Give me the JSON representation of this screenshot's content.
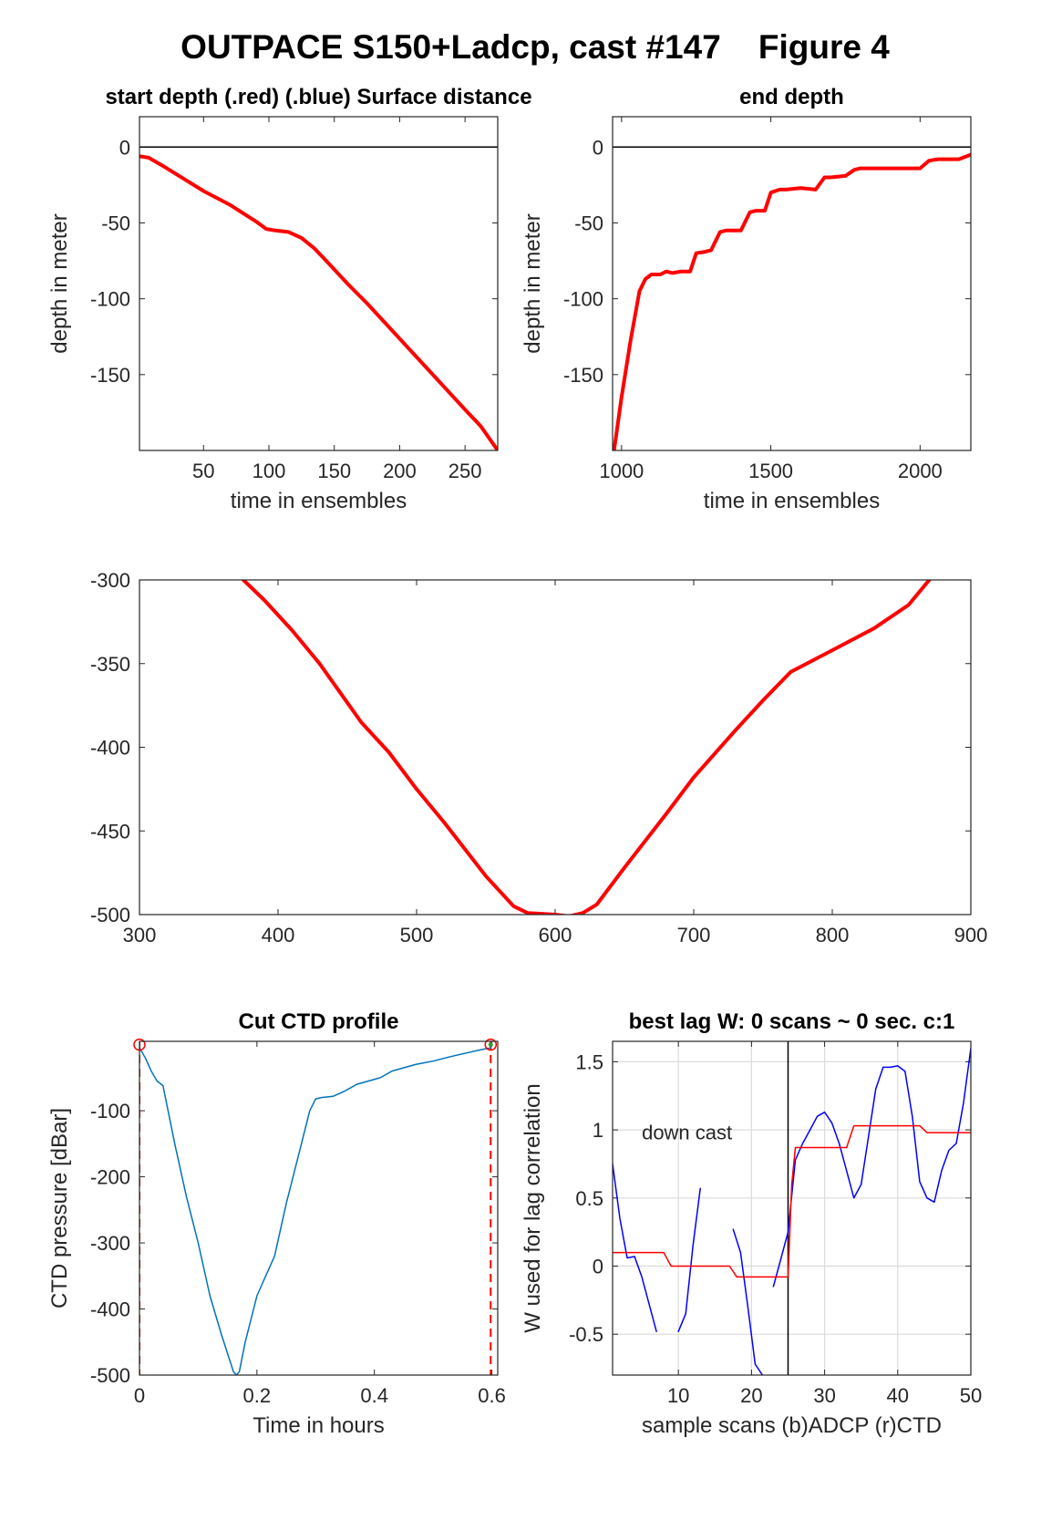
{
  "figure_title": "OUTPACE S150+Ladcp, cast #147    Figure 4",
  "chart_data": [
    {
      "id": "p1",
      "type": "line",
      "title": "start depth (.red) (.blue) Surface distance",
      "xlabel": "time in ensembles",
      "ylabel": "depth in meter",
      "xlim": [
        1,
        275
      ],
      "ylim": [
        -200,
        20
      ],
      "xticks": [
        50,
        100,
        150,
        200,
        250
      ],
      "yticks": [
        0,
        -50,
        -100,
        -150
      ],
      "hline": 0,
      "series": [
        {
          "color": "#ff0000",
          "width": 4,
          "x": [
            1,
            8,
            20,
            35,
            50,
            70,
            90,
            98,
            105,
            115,
            125,
            135,
            145,
            160,
            175,
            190,
            205,
            220,
            235,
            250,
            262,
            275
          ],
          "y": [
            -6,
            -7,
            -13,
            -21,
            -29,
            -38,
            -49,
            -54,
            -55,
            -56,
            -60,
            -67,
            -76,
            -90,
            -103,
            -117,
            -131,
            -145,
            -159,
            -173,
            -184,
            -200
          ]
        }
      ]
    },
    {
      "id": "p2",
      "type": "line",
      "title": "end depth",
      "xlabel": "time in ensembles",
      "ylabel": "depth in meter",
      "xlim": [
        970,
        2170
      ],
      "ylim": [
        -200,
        20
      ],
      "xticks": [
        1000,
        1500,
        2000
      ],
      "yticks": [
        0,
        -50,
        -100,
        -150
      ],
      "hline": 0,
      "series": [
        {
          "color": "#ff0000",
          "width": 4,
          "x": [
            975,
            1000,
            1030,
            1060,
            1080,
            1100,
            1130,
            1150,
            1170,
            1200,
            1230,
            1250,
            1280,
            1300,
            1330,
            1350,
            1400,
            1430,
            1450,
            1480,
            1500,
            1530,
            1550,
            1600,
            1650,
            1680,
            1700,
            1750,
            1780,
            1800,
            1850,
            1880,
            1950,
            2000,
            2030,
            2060,
            2100,
            2130,
            2170
          ],
          "y": [
            -200,
            -165,
            -128,
            -95,
            -87,
            -84,
            -84,
            -82,
            -83,
            -82,
            -82,
            -70,
            -69,
            -68,
            -56,
            -55,
            -55,
            -43,
            -42,
            -42,
            -30,
            -28,
            -28,
            -27,
            -28,
            -20,
            -20,
            -19,
            -15,
            -14,
            -14,
            -14,
            -14,
            -14,
            -9,
            -8,
            -8,
            -8,
            -5
          ]
        }
      ]
    },
    {
      "id": "p3",
      "type": "line",
      "title": "",
      "xlabel": "",
      "ylabel": "",
      "xlim": [
        300,
        900
      ],
      "ylim": [
        -500,
        -300
      ],
      "xticks": [
        300,
        400,
        500,
        600,
        700,
        800,
        900
      ],
      "yticks": [
        -300,
        -350,
        -400,
        -450,
        -500
      ],
      "series": [
        {
          "color": "#ff0000",
          "width": 4,
          "x": [
            375,
            390,
            410,
            430,
            460,
            480,
            500,
            520,
            550,
            570,
            580,
            600,
            610,
            620,
            630,
            650,
            680,
            700,
            730,
            750,
            770,
            800,
            830,
            855,
            870
          ],
          "y": [
            -300,
            -312,
            -330,
            -350,
            -385,
            -403,
            -425,
            -445,
            -477,
            -495,
            -499,
            -500,
            -501,
            -499,
            -494,
            -472,
            -440,
            -418,
            -390,
            -372,
            -355,
            -342,
            -329,
            -315,
            -300
          ]
        }
      ]
    },
    {
      "id": "p4",
      "type": "line",
      "title": "Cut CTD profile",
      "xlabel": "Time in hours",
      "ylabel": "CTD pressure [dBar]",
      "xlim": [
        0,
        0.61
      ],
      "ylim": [
        -500,
        5
      ],
      "xticks": [
        0,
        0.2,
        0.4,
        0.6
      ],
      "xticklabels": [
        "0",
        "0.2",
        "0.4",
        "0.6"
      ],
      "yticks": [
        -100,
        -200,
        -300,
        -400,
        -500
      ],
      "vlines": [
        0,
        0.598
      ],
      "markers": [
        {
          "x": 0,
          "y": 0
        },
        {
          "x": 0.598,
          "y": 0
        }
      ],
      "series": [
        {
          "color": "#0072bd",
          "width": 1.5,
          "x": [
            0,
            0.01,
            0.02,
            0.03,
            0.04,
            0.06,
            0.08,
            0.1,
            0.12,
            0.14,
            0.16,
            0.165,
            0.17,
            0.18,
            0.2,
            0.21,
            0.23,
            0.25,
            0.27,
            0.29,
            0.3,
            0.31,
            0.33,
            0.35,
            0.37,
            0.39,
            0.41,
            0.43,
            0.45,
            0.47,
            0.5,
            0.53,
            0.56,
            0.58,
            0.598
          ],
          "y": [
            -5,
            -20,
            -40,
            -55,
            -62,
            -150,
            -230,
            -300,
            -380,
            -440,
            -495,
            -500,
            -495,
            -450,
            -380,
            -360,
            -320,
            -240,
            -170,
            -100,
            -82,
            -80,
            -78,
            -70,
            -60,
            -55,
            -50,
            -40,
            -35,
            -30,
            -25,
            -18,
            -12,
            -8,
            -5
          ]
        }
      ]
    },
    {
      "id": "p5",
      "type": "line",
      "title": "best lag W: 0 scans ~ 0 sec.  c:1",
      "xlabel": "sample scans (b)ADCP (r)CTD",
      "ylabel": "W used for lag correlation",
      "xlim": [
        1,
        50
      ],
      "ylim": [
        -0.8,
        1.65
      ],
      "xticks": [
        10,
        20,
        30,
        40,
        50
      ],
      "yticks": [
        1.5,
        1,
        0.5,
        0,
        -0.5
      ],
      "grid": true,
      "vline": 25,
      "annotation": {
        "text": "down cast",
        "x": 5,
        "y": 0.93
      },
      "series": [
        {
          "color": "#0000ff",
          "width": 1.5,
          "x": [
            1,
            2,
            3,
            4,
            5,
            7
          ],
          "y": [
            0.75,
            0.35,
            0.06,
            0.07,
            -0.08,
            -0.48
          ]
        },
        {
          "color": "#0000ff",
          "width": 1.5,
          "x": [
            10,
            11,
            12,
            13
          ],
          "y": [
            -0.48,
            -0.35,
            0.15,
            0.57
          ]
        },
        {
          "color": "#0000ff",
          "width": 1.5,
          "x": [
            17.5,
            18.5,
            19.5,
            20.5,
            21.5
          ],
          "y": [
            0.27,
            0.1,
            -0.3,
            -0.72,
            -0.8
          ]
        },
        {
          "color": "#0000ff",
          "width": 1.5,
          "x": [
            23,
            24,
            25,
            26,
            27,
            28,
            29,
            30,
            31,
            32,
            33,
            34,
            35,
            36,
            37,
            38,
            39,
            40,
            41,
            42,
            43,
            44,
            45,
            46,
            47,
            48,
            49,
            50
          ],
          "y": [
            -0.15,
            0.05,
            0.25,
            0.78,
            0.9,
            1.0,
            1.1,
            1.13,
            1.05,
            0.9,
            0.7,
            0.5,
            0.6,
            0.95,
            1.3,
            1.46,
            1.46,
            1.47,
            1.43,
            1.1,
            0.62,
            0.5,
            0.47,
            0.7,
            0.85,
            0.9,
            1.2,
            1.6
          ]
        },
        {
          "color": "#ff0000",
          "width": 1.5,
          "x": [
            1,
            8,
            9,
            17,
            18,
            25,
            25.5,
            26,
            33,
            34,
            43,
            44,
            50
          ],
          "y": [
            0.1,
            0.1,
            0,
            0,
            -0.08,
            -0.08,
            0.6,
            0.87,
            0.87,
            1.03,
            1.03,
            0.98,
            0.98
          ]
        }
      ]
    }
  ]
}
